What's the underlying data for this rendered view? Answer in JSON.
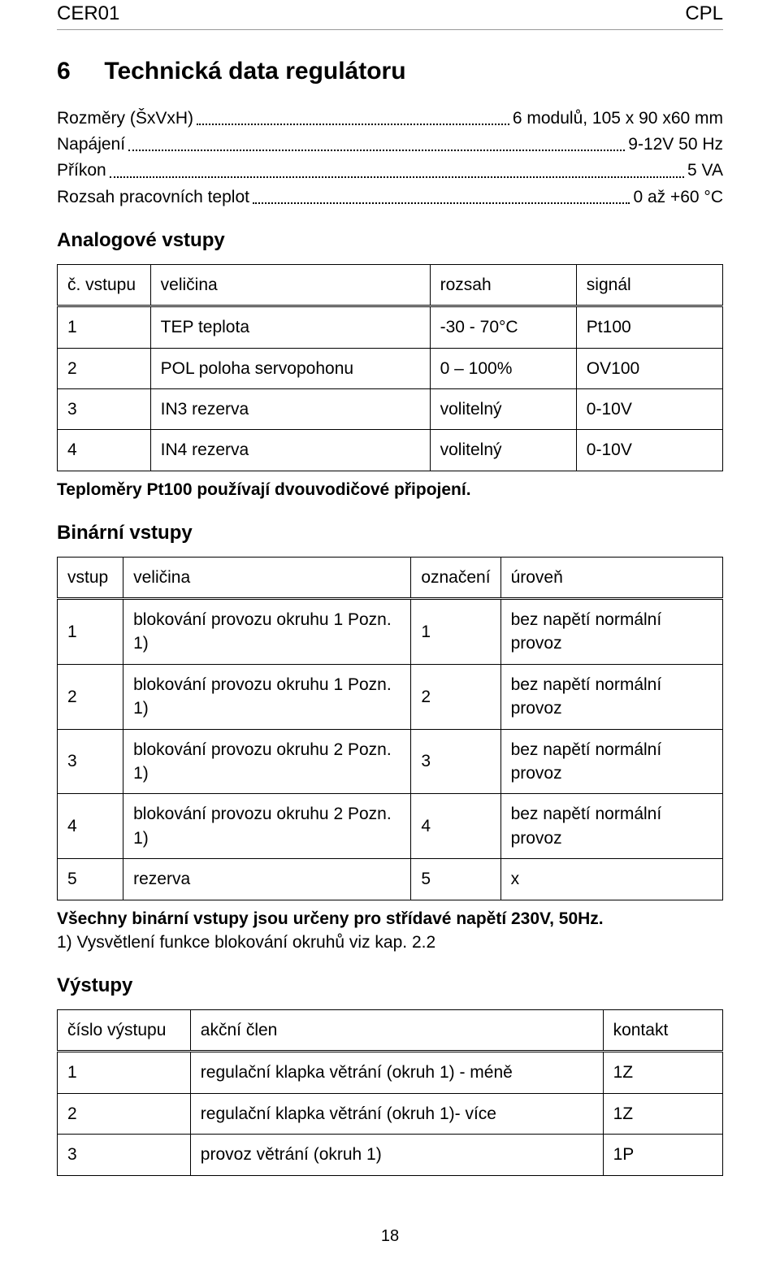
{
  "header": {
    "left": "CER01",
    "right": "CPL"
  },
  "section": {
    "number": "6",
    "title": "Technická data regulátoru"
  },
  "specs": [
    {
      "label": "Rozměry (ŠxVxH)",
      "value": "6 modulů, 105 x 90 x60 mm"
    },
    {
      "label": "Napájení",
      "value": "9-12V 50 Hz"
    },
    {
      "label": "Příkon",
      "value": "5 VA"
    },
    {
      "label": "Rozsah pracovních teplot",
      "value": "0 až +60 °C"
    }
  ],
  "analog": {
    "title": "Analogové vstupy",
    "columns": [
      "č. vstupu",
      "veličina",
      "rozsah",
      "signál"
    ],
    "rows": [
      [
        "1",
        "TEP teplota",
        "-30 - 70°C",
        "Pt100"
      ],
      [
        "2",
        "POL poloha servopohonu",
        "0 – 100%",
        "OV100"
      ],
      [
        "3",
        "IN3 rezerva",
        "volitelný",
        "0-10V"
      ],
      [
        "4",
        "IN4 rezerva",
        "volitelný",
        "0-10V"
      ]
    ],
    "note": "Teploměry Pt100 používají dvouvodičové připojení."
  },
  "binary": {
    "title": "Binární vstupy",
    "columns": [
      "vstup",
      "veličina",
      "označení",
      "úroveň"
    ],
    "rows": [
      [
        "1",
        "blokování provozu okruhu 1 Pozn. 1)",
        "1",
        "bez napětí normální provoz"
      ],
      [
        "2",
        "blokování provozu okruhu 1 Pozn. 1)",
        "2",
        "bez napětí normální provoz"
      ],
      [
        "3",
        "blokování provozu okruhu 2 Pozn. 1)",
        "3",
        "bez napětí normální provoz"
      ],
      [
        "4",
        "blokování provozu okruhu 2 Pozn. 1)",
        "4",
        "bez napětí normální provoz"
      ],
      [
        "5",
        "rezerva",
        "5",
        "x"
      ]
    ],
    "note_bold": "Všechny binární vstupy jsou určeny pro střídavé napětí 230V, 50Hz.",
    "note2": "1) Vysvětlení funkce blokování okruhů viz kap. 2.2"
  },
  "outputs": {
    "title": "Výstupy",
    "columns": [
      "číslo výstupu",
      "akční člen",
      "kontakt"
    ],
    "rows": [
      [
        "1",
        "regulační klapka větrání (okruh 1) - méně",
        "1Z"
      ],
      [
        "2",
        "regulační klapka větrání (okruh 1)- více",
        "1Z"
      ],
      [
        "3",
        "provoz větrání (okruh 1)",
        "1P"
      ]
    ]
  },
  "page_number": "18"
}
